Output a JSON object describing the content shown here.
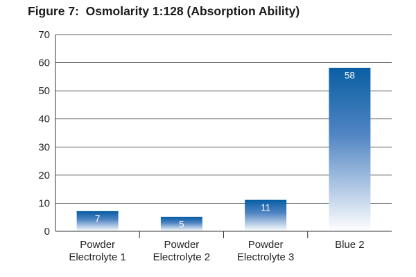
{
  "chart_data": {
    "type": "bar",
    "title": "Figure 7:  Osmolarity 1:128 (Absorption Ability)",
    "categories": [
      [
        "Powder",
        "Electrolyte 1"
      ],
      [
        "Powder",
        "Electrolyte 2"
      ],
      [
        "Powder",
        "Electrolyte 3"
      ],
      [
        "Blue 2"
      ]
    ],
    "values": [
      7,
      5,
      11,
      58
    ],
    "data_labels": [
      "7",
      "5",
      "11",
      "58"
    ],
    "xlabel": "",
    "ylabel": "",
    "ylim": [
      0,
      70
    ],
    "yticks": [
      0,
      10,
      20,
      30,
      40,
      50,
      60,
      70
    ],
    "grid": true,
    "legend": "none",
    "colors": {
      "bar_top": "#0a5fa4",
      "bar_bottom": "#ffffff",
      "grid": "#333333"
    }
  }
}
